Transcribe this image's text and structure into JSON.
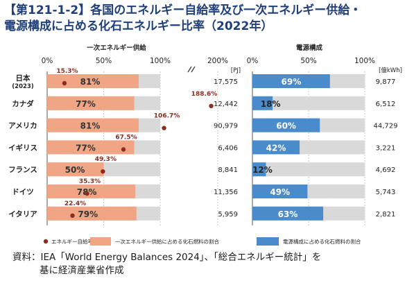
{
  "title": {
    "line1": "【第121-1-2】各国のエネルギー自給率及び一次エネルギー供給・",
    "line2": "電源構成に占める化石エネルギー比率（2022年）"
  },
  "left_panel": {
    "heading": "一次エネルギー供給",
    "unit": "[PJ]"
  },
  "right_panel": {
    "heading": "電源構成",
    "unit": "[億kWh]"
  },
  "legend": {
    "self_sufficiency": "エネルギー自給率",
    "primary_fossil": "一次エネルギー供給に占める化石燃料の割合",
    "power_fossil": "電源構成に占める化石燃料の割合"
  },
  "source": {
    "line1": "資料：IEA「World Energy Balances 2024」、「総合エネルギー統計」を",
    "line2": "基に経済産業省作成"
  },
  "chart_data": [
    {
      "type": "bar",
      "title": "一次エネルギー供給",
      "x_tick_labels": [
        "0%",
        "50%",
        "100%",
        "200%"
      ],
      "xlim": [
        0,
        200
      ],
      "axis_break": true,
      "categories": [
        "日本",
        "カナダ",
        "アメリカ",
        "イギリス",
        "フランス",
        "ドイツ",
        "イタリア"
      ],
      "category_sublabels": [
        "(2023)",
        "",
        "",
        "",
        "",
        "",
        ""
      ],
      "series": [
        {
          "name": "一次エネルギー供給に占める化石燃料の割合",
          "values": [
            81,
            77,
            81,
            77,
            50,
            78,
            79
          ],
          "color": "#f0a585"
        },
        {
          "name": "エネルギー自給率",
          "values": [
            15.3,
            188.6,
            106.7,
            67.5,
            49.3,
            35.3,
            22.4
          ],
          "color": "#8b2e22",
          "marker": "dot"
        }
      ],
      "bar_labels": [
        "81%",
        "77%",
        "81%",
        "77%",
        "50%",
        "78%",
        "79%"
      ],
      "dot_labels": [
        "15.3%",
        "188.6%",
        "106.7%",
        "67.5%",
        "49.3%",
        "35.3%",
        "22.4%"
      ],
      "totals_label": "[PJ]",
      "totals": [
        "17,575",
        "12,442",
        "90,979",
        "6,406",
        "8,841",
        "11,356",
        "5,959"
      ],
      "grid": true,
      "remainder_color": "#d9d9d9"
    },
    {
      "type": "bar",
      "title": "電源構成",
      "x_tick_labels": [
        "0%",
        "50%",
        "100%"
      ],
      "xlim": [
        0,
        100
      ],
      "categories": [
        "日本",
        "カナダ",
        "アメリカ",
        "イギリス",
        "フランス",
        "ドイツ",
        "イタリア"
      ],
      "series": [
        {
          "name": "電源構成に占める化石燃料の割合",
          "values": [
            69,
            18,
            60,
            42,
            12,
            49,
            63
          ],
          "color": "#4a8ccb"
        }
      ],
      "bar_labels": [
        "69%",
        "18%",
        "60%",
        "42%",
        "12%",
        "49%",
        "63%"
      ],
      "totals_label": "[億kWh]",
      "totals": [
        "9,877",
        "6,512",
        "44,729",
        "3,221",
        "4,692",
        "5,743",
        "2,821"
      ],
      "grid": true,
      "remainder_color": "#d9d9d9"
    }
  ]
}
